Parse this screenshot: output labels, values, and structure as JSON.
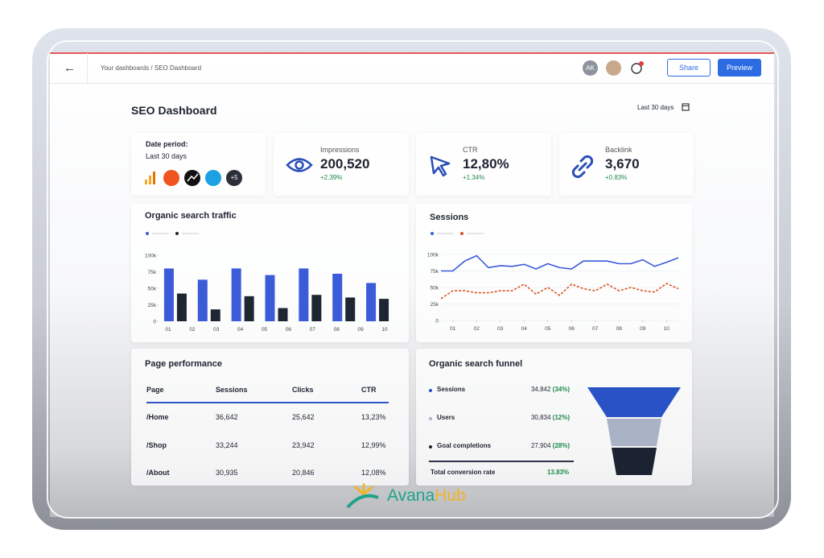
{
  "header": {
    "breadcrumb": "Your dashboards / SEO Dashboard",
    "avatar": "AK",
    "share": "Share",
    "preview": "Preview"
  },
  "title": "SEO Dashboard",
  "date_selector": "Last 30 days",
  "date_card": {
    "label": "Date period:",
    "value": "Last 30 days",
    "more": "+5"
  },
  "kpis": [
    {
      "label": "Impressions",
      "value": "200,520",
      "change": "+2.39%"
    },
    {
      "label": "CTR",
      "value": "12,80%",
      "change": "+1.34%"
    },
    {
      "label": "Backlink",
      "value": "3,670",
      "change": "+0.83%"
    }
  ],
  "charts": [
    {
      "type": "bar",
      "title": "Organic search traffic",
      "categories": [
        null,
        null,
        null,
        null,
        null,
        null,
        null
      ],
      "x_labels": [
        "01",
        "02",
        "03",
        "04",
        "05",
        "06",
        "07",
        "08",
        "09",
        "10"
      ],
      "series": [
        {
          "color": "#3b5bd9",
          "values": [
            80000,
            63000,
            80000,
            70000,
            80000,
            72000,
            58000
          ]
        },
        {
          "color": "#1f2633",
          "values": [
            42000,
            18000,
            38000,
            20000,
            40000,
            36000,
            34000
          ]
        }
      ],
      "ylim": [
        0,
        100000
      ],
      "yticks": [
        0,
        {
          "value": 25000,
          "label": "25k"
        },
        {
          "value": 50000,
          "label": "50k"
        },
        {
          "value": 75000,
          "label": "75k"
        },
        {
          "value": 100000,
          "label": "100k"
        }
      ]
    },
    {
      "type": "line",
      "title": "Sessions",
      "x": [
        0.5,
        1,
        1.5,
        2,
        2.5,
        3,
        3.5,
        4,
        4.5,
        5,
        5.5,
        6,
        6.5,
        7,
        7.5,
        8,
        8.5,
        9,
        9.5,
        10,
        10.5
      ],
      "series": [
        {
          "color": "#3b5bd9",
          "values": [
            75000,
            75000,
            90000,
            98000,
            80000,
            83000,
            82000,
            85000,
            78000,
            86000,
            80000,
            78000,
            90000,
            90000,
            90000,
            86000,
            86000,
            92000,
            82000,
            88000,
            95000
          ]
        },
        {
          "color": "#d9541e",
          "dashed": true,
          "values": [
            33000,
            45000,
            45000,
            42000,
            42000,
            45000,
            45000,
            55000,
            40000,
            50000,
            38000,
            55000,
            48000,
            45000,
            55000,
            45000,
            50000,
            45000,
            43000,
            56000,
            48000
          ]
        }
      ],
      "xlim": [
        0.5,
        10.5
      ],
      "xticks": [
        {
          "value": 1,
          "label": "01"
        },
        {
          "value": 2,
          "label": "02"
        },
        {
          "value": 3,
          "label": "03"
        },
        {
          "value": 4,
          "label": "04"
        },
        {
          "value": 5,
          "label": "05"
        },
        {
          "value": 6,
          "label": "06"
        },
        {
          "value": 7,
          "label": "07"
        },
        {
          "value": 8,
          "label": "08"
        },
        {
          "value": 9,
          "label": "09"
        },
        10
      ],
      "ylim": [
        0,
        100000
      ],
      "yticks": [
        0,
        {
          "value": 25000,
          "label": "25k"
        },
        {
          "value": 50000,
          "label": "50k"
        },
        {
          "value": 75000,
          "label": "75k"
        },
        {
          "value": 100000,
          "label": "100k"
        }
      ],
      "grid": true
    }
  ],
  "table": {
    "title": "Page performance",
    "columns": [
      "Page",
      "Sessions",
      "Clicks",
      "CTR"
    ],
    "rows": [
      [
        "/Home",
        "36,642",
        "25,642",
        "13,23%"
      ],
      [
        "/Shop",
        "33,244",
        "23,942",
        "12,99%"
      ],
      [
        "/About",
        "30,935",
        "20,846",
        "12,08%"
      ]
    ]
  },
  "funnel": {
    "title": "Organic search funnel",
    "rows": [
      {
        "label": "Sessions",
        "value": "34,842",
        "pct": "(34%)"
      },
      {
        "label": "Users",
        "value": "30,834",
        "pct": "(12%)"
      },
      {
        "label": "Goal completions",
        "value": "27,904",
        "pct": "(28%)"
      }
    ],
    "total_label": "Total conversion rate",
    "total_value": "13.83%"
  },
  "watermark": {
    "a": "Avana",
    "b": "Hub"
  }
}
